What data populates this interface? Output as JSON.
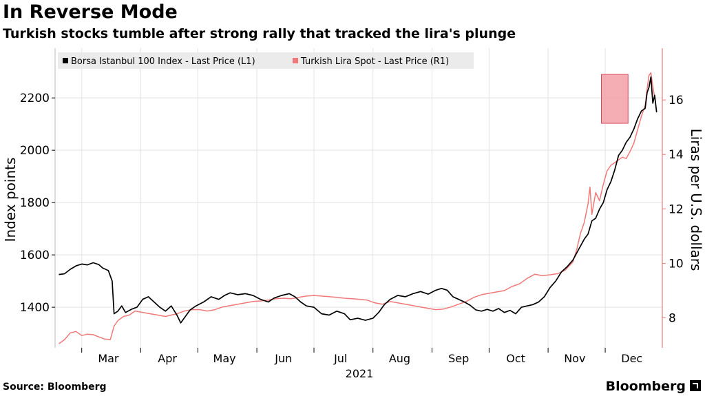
{
  "header": {
    "title": "In Reverse Mode",
    "subtitle": "Turkish stocks tumble after strong rally that tracked the lira's plunge"
  },
  "footer": {
    "source": "Source: Bloomberg",
    "brand": "Bloomberg"
  },
  "chart_data": {
    "type": "line",
    "xlabel": "2021",
    "x_tick_labels": [
      "Mar",
      "Apr",
      "May",
      "Jun",
      "Jul",
      "Aug",
      "Sep",
      "Oct",
      "Nov",
      "Dec"
    ],
    "ylabel_left": "Index points",
    "ylabel_right": "Liras per U.S. dollars",
    "ylim_left": [
      1245,
      2390
    ],
    "ylim_right": [
      6.9,
      17.9
    ],
    "yticks_left": [
      1400,
      1600,
      1800,
      2000,
      2200
    ],
    "yticks_right": [
      8,
      10,
      12,
      14,
      16
    ],
    "grid": true,
    "legend_position": "top-left",
    "colors": {
      "stocks": "#000000",
      "lira": "#f07878",
      "highlight": "#f4a0a8"
    },
    "highlight_box": {
      "x_start": "2021-11-29",
      "x_end": "2021-12-13",
      "y_left_min": 2103,
      "y_left_max": 2290
    },
    "series": [
      {
        "name": "Borsa Istanbul 100 Index - Last Price (L1)",
        "axis": "left",
        "points": [
          [
            "2021-02-17",
            1525
          ],
          [
            "2021-02-20",
            1528
          ],
          [
            "2021-02-23",
            1545
          ],
          [
            "2021-02-26",
            1558
          ],
          [
            "2021-03-01",
            1565
          ],
          [
            "2021-03-04",
            1562
          ],
          [
            "2021-03-07",
            1570
          ],
          [
            "2021-03-10",
            1563
          ],
          [
            "2021-03-12",
            1550
          ],
          [
            "2021-03-15",
            1540
          ],
          [
            "2021-03-17",
            1500
          ],
          [
            "2021-03-18",
            1375
          ],
          [
            "2021-03-20",
            1385
          ],
          [
            "2021-03-22",
            1405
          ],
          [
            "2021-03-24",
            1380
          ],
          [
            "2021-03-27",
            1392
          ],
          [
            "2021-03-30",
            1400
          ],
          [
            "2021-04-02",
            1430
          ],
          [
            "2021-04-05",
            1440
          ],
          [
            "2021-04-08",
            1420
          ],
          [
            "2021-04-11",
            1400
          ],
          [
            "2021-04-14",
            1385
          ],
          [
            "2021-04-17",
            1405
          ],
          [
            "2021-04-20",
            1370
          ],
          [
            "2021-04-22",
            1340
          ],
          [
            "2021-04-24",
            1360
          ],
          [
            "2021-04-27",
            1390
          ],
          [
            "2021-04-30",
            1405
          ],
          [
            "2021-05-04",
            1420
          ],
          [
            "2021-05-08",
            1440
          ],
          [
            "2021-05-12",
            1430
          ],
          [
            "2021-05-15",
            1445
          ],
          [
            "2021-05-18",
            1455
          ],
          [
            "2021-05-22",
            1448
          ],
          [
            "2021-05-26",
            1452
          ],
          [
            "2021-05-30",
            1445
          ],
          [
            "2021-06-03",
            1430
          ],
          [
            "2021-06-07",
            1420
          ],
          [
            "2021-06-10",
            1435
          ],
          [
            "2021-06-14",
            1445
          ],
          [
            "2021-06-18",
            1452
          ],
          [
            "2021-06-21",
            1440
          ],
          [
            "2021-06-24",
            1420
          ],
          [
            "2021-06-27",
            1405
          ],
          [
            "2021-07-01",
            1400
          ],
          [
            "2021-07-05",
            1375
          ],
          [
            "2021-07-09",
            1370
          ],
          [
            "2021-07-13",
            1385
          ],
          [
            "2021-07-17",
            1375
          ],
          [
            "2021-07-20",
            1352
          ],
          [
            "2021-07-24",
            1358
          ],
          [
            "2021-07-28",
            1350
          ],
          [
            "2021-08-01",
            1358
          ],
          [
            "2021-08-04",
            1380
          ],
          [
            "2021-08-07",
            1410
          ],
          [
            "2021-08-10",
            1430
          ],
          [
            "2021-08-14",
            1445
          ],
          [
            "2021-08-18",
            1440
          ],
          [
            "2021-08-22",
            1452
          ],
          [
            "2021-08-26",
            1460
          ],
          [
            "2021-08-30",
            1450
          ],
          [
            "2021-09-03",
            1465
          ],
          [
            "2021-09-06",
            1472
          ],
          [
            "2021-09-09",
            1465
          ],
          [
            "2021-09-12",
            1440
          ],
          [
            "2021-09-15",
            1430
          ],
          [
            "2021-09-18",
            1420
          ],
          [
            "2021-09-21",
            1408
          ],
          [
            "2021-09-24",
            1390
          ],
          [
            "2021-09-27",
            1385
          ],
          [
            "2021-09-30",
            1392
          ],
          [
            "2021-10-03",
            1385
          ],
          [
            "2021-10-06",
            1395
          ],
          [
            "2021-10-09",
            1380
          ],
          [
            "2021-10-12",
            1388
          ],
          [
            "2021-10-15",
            1375
          ],
          [
            "2021-10-18",
            1400
          ],
          [
            "2021-10-21",
            1405
          ],
          [
            "2021-10-24",
            1410
          ],
          [
            "2021-10-27",
            1420
          ],
          [
            "2021-10-30",
            1440
          ],
          [
            "2021-11-02",
            1475
          ],
          [
            "2021-11-05",
            1500
          ],
          [
            "2021-11-08",
            1535
          ],
          [
            "2021-11-11",
            1555
          ],
          [
            "2021-11-14",
            1580
          ],
          [
            "2021-11-17",
            1620
          ],
          [
            "2021-11-20",
            1660
          ],
          [
            "2021-11-22",
            1680
          ],
          [
            "2021-11-24",
            1730
          ],
          [
            "2021-11-26",
            1740
          ],
          [
            "2021-11-28",
            1775
          ],
          [
            "2021-11-30",
            1800
          ],
          [
            "2021-12-02",
            1850
          ],
          [
            "2021-12-04",
            1880
          ],
          [
            "2021-12-06",
            1925
          ],
          [
            "2021-12-08",
            1980
          ],
          [
            "2021-12-10",
            2000
          ],
          [
            "2021-12-12",
            2030
          ],
          [
            "2021-12-14",
            2050
          ],
          [
            "2021-12-16",
            2080
          ],
          [
            "2021-12-18",
            2120
          ],
          [
            "2021-12-20",
            2150
          ],
          [
            "2021-12-22",
            2160
          ],
          [
            "2021-12-23",
            2220
          ],
          [
            "2021-12-24",
            2240
          ],
          [
            "2021-12-25",
            2280
          ],
          [
            "2021-12-26",
            2180
          ],
          [
            "2021-12-27",
            2210
          ],
          [
            "2021-12-28",
            2145
          ]
        ]
      },
      {
        "name": "Turkish Lira Spot - Last Price (R1)",
        "axis": "right",
        "points": [
          [
            "2021-02-17",
            7.05
          ],
          [
            "2021-02-20",
            7.2
          ],
          [
            "2021-02-23",
            7.45
          ],
          [
            "2021-02-26",
            7.5
          ],
          [
            "2021-03-01",
            7.35
          ],
          [
            "2021-03-04",
            7.4
          ],
          [
            "2021-03-07",
            7.38
          ],
          [
            "2021-03-10",
            7.3
          ],
          [
            "2021-03-13",
            7.22
          ],
          [
            "2021-03-16",
            7.2
          ],
          [
            "2021-03-18",
            7.7
          ],
          [
            "2021-03-20",
            7.9
          ],
          [
            "2021-03-23",
            8.05
          ],
          [
            "2021-03-26",
            8.1
          ],
          [
            "2021-03-29",
            8.25
          ],
          [
            "2021-04-02",
            8.2
          ],
          [
            "2021-04-06",
            8.15
          ],
          [
            "2021-04-10",
            8.1
          ],
          [
            "2021-04-14",
            8.05
          ],
          [
            "2021-04-17",
            8.1
          ],
          [
            "2021-04-20",
            8.15
          ],
          [
            "2021-04-24",
            8.25
          ],
          [
            "2021-04-28",
            8.3
          ],
          [
            "2021-05-02",
            8.3
          ],
          [
            "2021-05-06",
            8.25
          ],
          [
            "2021-05-10",
            8.3
          ],
          [
            "2021-05-14",
            8.4
          ],
          [
            "2021-05-18",
            8.45
          ],
          [
            "2021-05-22",
            8.5
          ],
          [
            "2021-05-26",
            8.55
          ],
          [
            "2021-05-30",
            8.6
          ],
          [
            "2021-06-03",
            8.62
          ],
          [
            "2021-06-07",
            8.65
          ],
          [
            "2021-06-11",
            8.7
          ],
          [
            "2021-06-15",
            8.72
          ],
          [
            "2021-06-19",
            8.7
          ],
          [
            "2021-06-23",
            8.75
          ],
          [
            "2021-06-27",
            8.8
          ],
          [
            "2021-07-01",
            8.82
          ],
          [
            "2021-07-05",
            8.8
          ],
          [
            "2021-07-09",
            8.78
          ],
          [
            "2021-07-13",
            8.75
          ],
          [
            "2021-07-17",
            8.72
          ],
          [
            "2021-07-21",
            8.7
          ],
          [
            "2021-07-25",
            8.68
          ],
          [
            "2021-07-29",
            8.65
          ],
          [
            "2021-08-02",
            8.55
          ],
          [
            "2021-08-06",
            8.5
          ],
          [
            "2021-08-10",
            8.6
          ],
          [
            "2021-08-14",
            8.55
          ],
          [
            "2021-08-18",
            8.5
          ],
          [
            "2021-08-22",
            8.45
          ],
          [
            "2021-08-26",
            8.4
          ],
          [
            "2021-08-30",
            8.35
          ],
          [
            "2021-09-03",
            8.3
          ],
          [
            "2021-09-07",
            8.32
          ],
          [
            "2021-09-11",
            8.4
          ],
          [
            "2021-09-15",
            8.5
          ],
          [
            "2021-09-19",
            8.6
          ],
          [
            "2021-09-23",
            8.75
          ],
          [
            "2021-09-27",
            8.85
          ],
          [
            "2021-10-01",
            8.9
          ],
          [
            "2021-10-05",
            8.95
          ],
          [
            "2021-10-09",
            9.0
          ],
          [
            "2021-10-13",
            9.15
          ],
          [
            "2021-10-17",
            9.25
          ],
          [
            "2021-10-21",
            9.45
          ],
          [
            "2021-10-25",
            9.6
          ],
          [
            "2021-10-29",
            9.55
          ],
          [
            "2021-11-02",
            9.58
          ],
          [
            "2021-11-06",
            9.62
          ],
          [
            "2021-11-10",
            9.75
          ],
          [
            "2021-11-14",
            10.05
          ],
          [
            "2021-11-16",
            10.5
          ],
          [
            "2021-11-18",
            11.1
          ],
          [
            "2021-11-20",
            11.5
          ],
          [
            "2021-11-22",
            12.2
          ],
          [
            "2021-11-23",
            12.8
          ],
          [
            "2021-11-24",
            11.8
          ],
          [
            "2021-11-26",
            12.6
          ],
          [
            "2021-11-28",
            12.3
          ],
          [
            "2021-11-30",
            12.9
          ],
          [
            "2021-12-02",
            13.4
          ],
          [
            "2021-12-04",
            13.6
          ],
          [
            "2021-12-06",
            13.7
          ],
          [
            "2021-12-08",
            13.8
          ],
          [
            "2021-12-10",
            13.9
          ],
          [
            "2021-12-12",
            13.85
          ],
          [
            "2021-12-14",
            14.1
          ],
          [
            "2021-12-16",
            14.4
          ],
          [
            "2021-12-18",
            14.9
          ],
          [
            "2021-12-20",
            15.4
          ],
          [
            "2021-12-22",
            15.8
          ],
          [
            "2021-12-23",
            16.4
          ],
          [
            "2021-12-24",
            16.9
          ],
          [
            "2021-12-25",
            17.0
          ],
          [
            "2021-12-26",
            16.5
          ],
          [
            "2021-12-27",
            16.1
          ],
          [
            "2021-12-28",
            15.6
          ]
        ]
      }
    ]
  }
}
